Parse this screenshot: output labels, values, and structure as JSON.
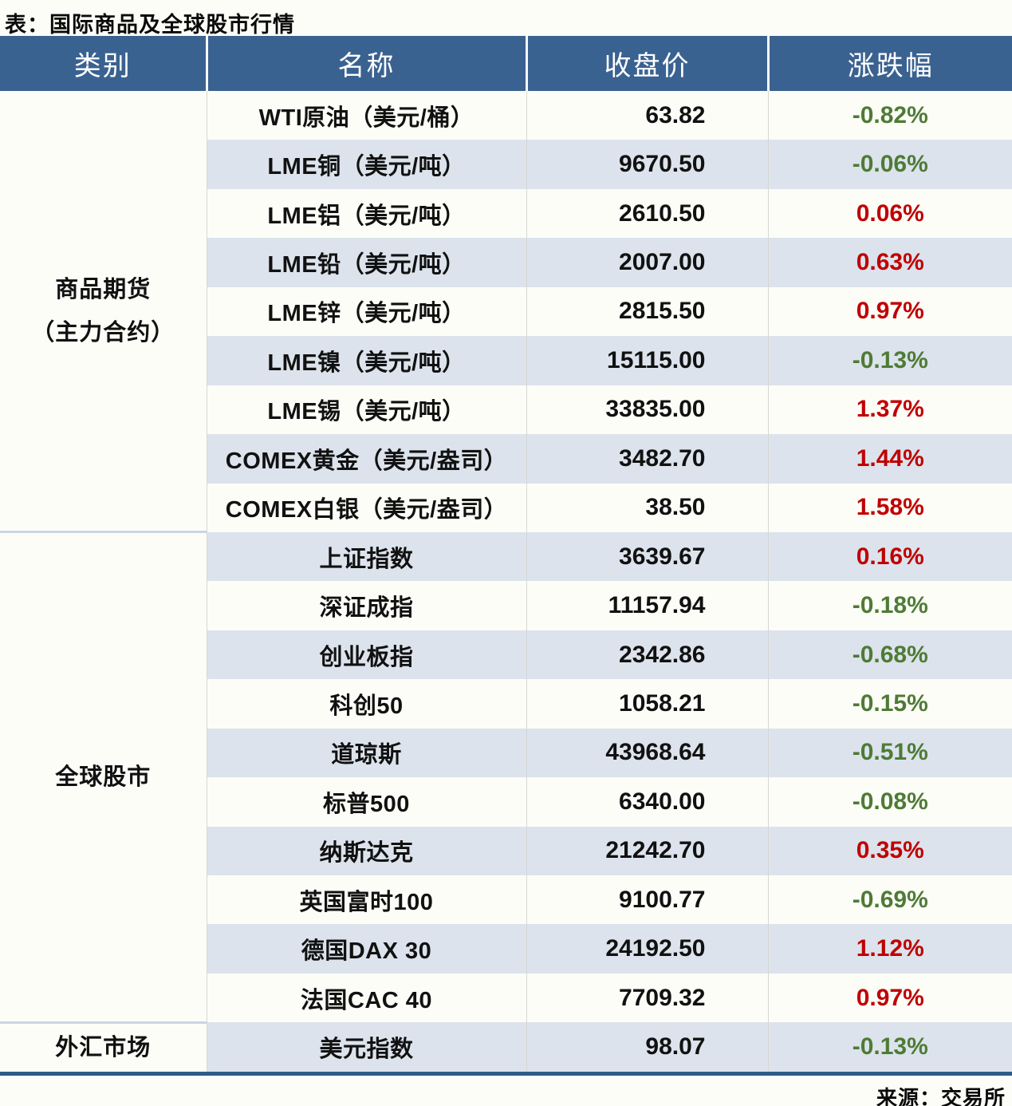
{
  "title": "表：国际商品及全球股市行情",
  "footer": {
    "source": "来源：交易所"
  },
  "colors": {
    "header_bg": "#3A6290",
    "stripe_bg": "#DCE3EC",
    "page_bg": "#FDFDF8",
    "up_red": "#C00000",
    "down_green": "#4E7B35",
    "bottom_border": "#2F5B87",
    "divider": "#D6D6D6",
    "group_separator": "#CBD6E3"
  },
  "chart_data": {
    "type": "table",
    "title": "国际商品及全球股市行情",
    "columns": [
      "类别",
      "名称",
      "收盘价",
      "涨跌幅"
    ],
    "groups": [
      {
        "category_lines": [
          "商品期货",
          "（主力合约）"
        ],
        "rows": [
          {
            "name": "WTI原油（美元/桶）",
            "close": "63.82",
            "change": "-0.82%"
          },
          {
            "name": "LME铜（美元/吨）",
            "close": "9670.50",
            "change": "-0.06%"
          },
          {
            "name": "LME铝（美元/吨）",
            "close": "2610.50",
            "change": "0.06%"
          },
          {
            "name": "LME铅（美元/吨）",
            "close": "2007.00",
            "change": "0.63%"
          },
          {
            "name": "LME锌（美元/吨）",
            "close": "2815.50",
            "change": "0.97%"
          },
          {
            "name": "LME镍（美元/吨）",
            "close": "15115.00",
            "change": "-0.13%"
          },
          {
            "name": "LME锡（美元/吨）",
            "close": "33835.00",
            "change": "1.37%"
          },
          {
            "name": "COMEX黄金（美元/盎司）",
            "close": "3482.70",
            "change": "1.44%"
          },
          {
            "name": "COMEX白银（美元/盎司）",
            "close": "38.50",
            "change": "1.58%"
          }
        ]
      },
      {
        "category_lines": [
          "全球股市"
        ],
        "rows": [
          {
            "name": "上证指数",
            "close": "3639.67",
            "change": "0.16%"
          },
          {
            "name": "深证成指",
            "close": "11157.94",
            "change": "-0.18%"
          },
          {
            "name": "创业板指",
            "close": "2342.86",
            "change": "-0.68%"
          },
          {
            "name": "科创50",
            "close": "1058.21",
            "change": "-0.15%"
          },
          {
            "name": "道琼斯",
            "close": "43968.64",
            "change": "-0.51%"
          },
          {
            "name": "标普500",
            "close": "6340.00",
            "change": "-0.08%"
          },
          {
            "name": "纳斯达克",
            "close": "21242.70",
            "change": "0.35%"
          },
          {
            "name": "英国富时100",
            "close": "9100.77",
            "change": "-0.69%"
          },
          {
            "name": "德国DAX 30",
            "close": "24192.50",
            "change": "1.12%"
          },
          {
            "name": "法国CAC 40",
            "close": "7709.32",
            "change": "0.97%"
          }
        ]
      },
      {
        "category_lines": [
          "外汇市场"
        ],
        "rows": [
          {
            "name": "美元指数",
            "close": "98.07",
            "change": "-0.13%"
          }
        ]
      }
    ]
  }
}
